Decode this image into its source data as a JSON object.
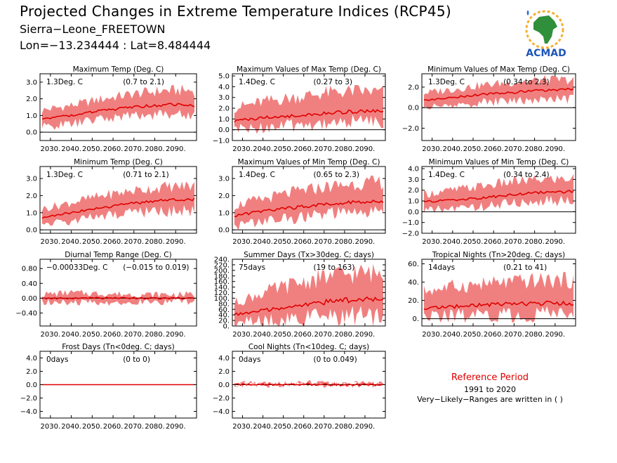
{
  "header": {
    "title": "Projected Changes in Extreme Temperature Indices (RCP45)",
    "subtitle": "Sierra−Leone_FREETOWN",
    "coords": "Lon=−13.234444 : Lat=8.484444"
  },
  "logo": {
    "text": "ACMAD"
  },
  "reference": {
    "title": "Reference Period",
    "years": "1991 to 2020",
    "note": "Very−Likely−Ranges are written in ( )"
  },
  "colors": {
    "band": "#f08080",
    "line": "#e00000",
    "zero": "#000000"
  },
  "chart_data": [
    {
      "type": "area",
      "title": "Maximum Temp (Deg. C)",
      "stat": "1.3Deg. C",
      "range": "(0.7 to 2.1)",
      "x_ticks": [
        "2030.",
        "2040.",
        "2050.",
        "2060.",
        "2070.",
        "2080.",
        "2090."
      ],
      "y_ticks": [
        "0.0",
        "1.0",
        "2.0",
        "3.0"
      ],
      "ylim": [
        -0.5,
        3.5
      ],
      "xlim": [
        2025,
        2100
      ],
      "series": [
        {
          "x": [
            2025,
            2040,
            2055,
            2070,
            2085,
            2100
          ],
          "median": [
            0.8,
            1.0,
            1.3,
            1.5,
            1.65,
            1.6
          ],
          "low": [
            0.3,
            0.5,
            0.8,
            1.0,
            1.1,
            1.0
          ],
          "high": [
            1.3,
            1.6,
            2.0,
            2.3,
            2.5,
            2.5
          ]
        }
      ]
    },
    {
      "type": "area",
      "title": "Maximum Values of Max Temp (Deg. C)",
      "stat": "1.4Deg. C",
      "range": "(0.27 to 3)",
      "x_ticks": [
        "2030.",
        "2040.",
        "2050.",
        "2060.",
        "2070.",
        "2080.",
        "2090."
      ],
      "y_ticks": [
        "−1.0",
        "0.0",
        "1.0",
        "2.0",
        "3.0",
        "4.0",
        "5.0"
      ],
      "ylim": [
        -1.0,
        5.2
      ],
      "xlim": [
        2025,
        2100
      ],
      "series": [
        {
          "x": [
            2025,
            2040,
            2055,
            2070,
            2085,
            2100
          ],
          "median": [
            0.8,
            1.1,
            1.3,
            1.5,
            1.7,
            1.8
          ],
          "low": [
            0.0,
            0.2,
            0.4,
            0.6,
            0.8,
            0.8
          ],
          "high": [
            2.0,
            2.6,
            3.0,
            3.4,
            3.6,
            3.5
          ]
        }
      ]
    },
    {
      "type": "area",
      "title": "Minimum Values of Max Temp (Deg. C)",
      "stat": "1.3Deg. C",
      "range": "(0.34 to 2.3)",
      "x_ticks": [
        "2030.",
        "2040.",
        "2050.",
        "2060.",
        "2070.",
        "2080.",
        "2090."
      ],
      "y_ticks": [
        "−2.0",
        "0.0",
        "2.0"
      ],
      "ylim": [
        -3.2,
        3.3
      ],
      "xlim": [
        2025,
        2100
      ],
      "series": [
        {
          "x": [
            2025,
            2040,
            2055,
            2070,
            2085,
            2100
          ],
          "median": [
            0.7,
            1.0,
            1.3,
            1.5,
            1.7,
            1.8
          ],
          "low": [
            0.0,
            0.2,
            0.5,
            0.7,
            0.8,
            0.8
          ],
          "high": [
            1.4,
            1.8,
            2.2,
            2.5,
            2.7,
            2.7
          ]
        }
      ]
    },
    {
      "type": "area",
      "title": "Minimum Temp (Deg. C)",
      "stat": "1.3Deg. C",
      "range": "(0.71 to 2.1)",
      "x_ticks": [
        "2030.",
        "2040.",
        "2050.",
        "2060.",
        "2070.",
        "2080.",
        "2090."
      ],
      "y_ticks": [
        "0.0",
        "1.0",
        "2.0",
        "3.0"
      ],
      "ylim": [
        -0.2,
        3.7
      ],
      "xlim": [
        2025,
        2100
      ],
      "series": [
        {
          "x": [
            2025,
            2040,
            2055,
            2070,
            2085,
            2100
          ],
          "median": [
            0.7,
            1.0,
            1.3,
            1.55,
            1.75,
            1.8
          ],
          "low": [
            0.3,
            0.5,
            0.8,
            1.0,
            1.1,
            1.1
          ],
          "high": [
            1.2,
            1.6,
            2.0,
            2.3,
            2.5,
            2.6
          ]
        }
      ]
    },
    {
      "type": "area",
      "title": "Maximum Values of Min Temp (Deg. C)",
      "stat": "1.4Deg. C",
      "range": "(0.65 to 2.3)",
      "x_ticks": [
        "2030.",
        "2040.",
        "2050.",
        "2060.",
        "2070.",
        "2080.",
        "2090."
      ],
      "y_ticks": [
        "0.0",
        "1.0",
        "2.0",
        "3.0"
      ],
      "ylim": [
        -0.2,
        3.7
      ],
      "xlim": [
        2025,
        2100
      ],
      "series": [
        {
          "x": [
            2025,
            2040,
            2055,
            2070,
            2085,
            2100
          ],
          "median": [
            0.8,
            1.1,
            1.3,
            1.5,
            1.65,
            1.7
          ],
          "low": [
            0.2,
            0.5,
            0.7,
            0.9,
            1.0,
            1.0
          ],
          "high": [
            1.4,
            1.8,
            2.2,
            2.5,
            2.7,
            2.8
          ]
        }
      ]
    },
    {
      "type": "area",
      "title": "Minimum Values of Min Temp (Deg. C)",
      "stat": "1.4Deg. C",
      "range": "(0.34 to 2.4)",
      "x_ticks": [
        "2030.",
        "2040.",
        "2050.",
        "2060.",
        "2070.",
        "2080.",
        "2090."
      ],
      "y_ticks": [
        "−2.0",
        "−1.0",
        "0.0",
        "1.0",
        "2.0",
        "3.0",
        "4.0"
      ],
      "ylim": [
        -2.0,
        4.2
      ],
      "xlim": [
        2025,
        2100
      ],
      "series": [
        {
          "x": [
            2025,
            2040,
            2055,
            2070,
            2085,
            2100
          ],
          "median": [
            0.9,
            1.1,
            1.3,
            1.6,
            1.8,
            1.9
          ],
          "low": [
            0.1,
            0.3,
            0.5,
            0.8,
            1.0,
            1.0
          ],
          "high": [
            1.6,
            2.0,
            2.4,
            2.8,
            3.0,
            3.1
          ]
        }
      ]
    },
    {
      "type": "area",
      "title": "Diurnal Temp Range (Deg. C)",
      "stat": "−0.00033Deg. C",
      "range": "(−0.015 to 0.019)",
      "x_ticks": [
        "2030.",
        "2040.",
        "2050.",
        "2060.",
        "2070.",
        "2080.",
        "2090."
      ],
      "y_ticks": [
        "−0.40",
        "0.00",
        "0.40",
        "0.80"
      ],
      "ylim": [
        -0.75,
        1.05
      ],
      "xlim": [
        2025,
        2100
      ],
      "series": [
        {
          "x": [
            2025,
            2040,
            2055,
            2070,
            2085,
            2100
          ],
          "median": [
            0.0,
            0.0,
            0.0,
            0.0,
            0.0,
            0.0
          ],
          "low": [
            -0.1,
            -0.12,
            -0.12,
            -0.1,
            -0.1,
            -0.1
          ],
          "high": [
            0.1,
            0.15,
            0.12,
            0.1,
            0.1,
            0.1
          ]
        }
      ]
    },
    {
      "type": "area",
      "title": "Summer Days (Tx>30deg. C; days)",
      "stat": "75days",
      "range": "(19 to 163)",
      "x_ticks": [
        "2030.",
        "2040.",
        "2050.",
        "2060.",
        "2070.",
        "2080.",
        "2090."
      ],
      "y_ticks": [
        "0.",
        "20.",
        "40.",
        "60.",
        "80.",
        "100.",
        "120.",
        "140.",
        "160.",
        "180.",
        "200.",
        "220.",
        "240."
      ],
      "ylim": [
        0,
        240
      ],
      "xlim": [
        2025,
        2100
      ],
      "series": [
        {
          "x": [
            2025,
            2040,
            2055,
            2070,
            2085,
            2100
          ],
          "median": [
            40,
            55,
            70,
            85,
            95,
            95
          ],
          "low": [
            12,
            18,
            25,
            30,
            35,
            35
          ],
          "high": [
            80,
            120,
            150,
            175,
            190,
            190
          ]
        }
      ]
    },
    {
      "type": "area",
      "title": "Tropical Nights (Tn>20deg. C; days)",
      "stat": "14days",
      "range": "(0.21 to 41)",
      "x_ticks": [
        "2030.",
        "2040.",
        "2050.",
        "2060.",
        "2070.",
        "2080.",
        "2090."
      ],
      "y_ticks": [
        "0.",
        "20.",
        "40.",
        "60."
      ],
      "ylim": [
        -8,
        65
      ],
      "xlim": [
        2025,
        2100
      ],
      "series": [
        {
          "x": [
            2025,
            2040,
            2055,
            2070,
            2085,
            2100
          ],
          "median": [
            11,
            13,
            15,
            16,
            17,
            17
          ],
          "low": [
            2,
            3,
            4,
            4,
            5,
            5
          ],
          "high": [
            30,
            35,
            38,
            40,
            42,
            42
          ]
        }
      ]
    },
    {
      "type": "line",
      "title": "Frost Days (Tn<0deg. C; days)",
      "stat": "0days",
      "range": "(0 to 0)",
      "x_ticks": [
        "2030.",
        "2040.",
        "2050.",
        "2060.",
        "2070.",
        "2080.",
        "2090."
      ],
      "y_ticks": [
        "−4.0",
        "−2.0",
        "0.0",
        "2.0",
        "4.0"
      ],
      "ylim": [
        -5,
        5
      ],
      "xlim": [
        2025,
        2100
      ],
      "series": [
        {
          "x": [
            2025,
            2100
          ],
          "median": [
            0,
            0
          ],
          "low": [
            0,
            0
          ],
          "high": [
            0,
            0
          ]
        }
      ]
    },
    {
      "type": "line",
      "title": "Cool Nights (Tn<10deg. C; days)",
      "stat": "0days",
      "range": "(0 to 0.049)",
      "x_ticks": [
        "2030.",
        "2040.",
        "2050.",
        "2060.",
        "2070.",
        "2080.",
        "2090."
      ],
      "y_ticks": [
        "−4.0",
        "−2.0",
        "0.0",
        "2.0",
        "4.0"
      ],
      "ylim": [
        -5,
        5
      ],
      "xlim": [
        2025,
        2100
      ],
      "series": [
        {
          "x": [
            2025,
            2060,
            2062,
            2064,
            2100
          ],
          "median": [
            0,
            0,
            0.1,
            0,
            0
          ],
          "low": [
            0,
            0,
            0,
            0,
            0
          ],
          "high": [
            0.1,
            0.1,
            0.6,
            0.1,
            0.1
          ]
        }
      ]
    }
  ]
}
